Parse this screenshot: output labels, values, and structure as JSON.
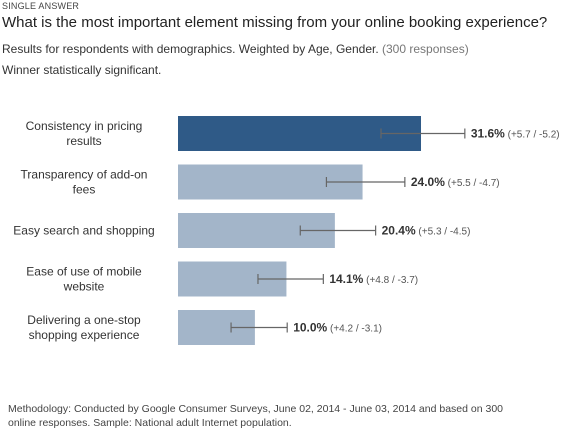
{
  "header": {
    "kicker": "SINGLE ANSWER",
    "question": "What is the most important element missing from your online booking experience?",
    "subtitle_main": "Results for respondents with demographics. Weighted by Age, Gender.",
    "subtitle_count": "(300 responses)",
    "note": "Winner statistically significant."
  },
  "footer": {
    "methodology": "Methodology: Conducted by Google Consumer Surveys, June 02, 2014 - June 03, 2014 and based on 300 online responses. Sample: National adult Internet population."
  },
  "colors": {
    "winner": "#2f5a87",
    "other": "#a3b5c9",
    "error_bar": "#666666"
  },
  "chart_data": {
    "type": "bar",
    "orientation": "horizontal",
    "categories": [
      [
        "Consistency in pricing",
        "results"
      ],
      [
        "Transparency of add-on",
        "fees"
      ],
      [
        "Easy search and shopping"
      ],
      [
        "Ease of use of mobile",
        "website"
      ],
      [
        "Delivering a one-stop",
        "shopping experience"
      ]
    ],
    "values": [
      31.6,
      24.0,
      20.4,
      14.1,
      10.0
    ],
    "value_labels": [
      "31.6%",
      "24.0%",
      "20.4%",
      "14.1%",
      "10.0%"
    ],
    "error_plus": [
      5.7,
      5.5,
      5.3,
      4.8,
      4.2
    ],
    "error_minus": [
      5.2,
      4.7,
      4.5,
      3.7,
      3.1
    ],
    "error_labels": [
      "(+5.7 / -5.2)",
      "(+5.5 / -4.7)",
      "(+5.3 / -4.5)",
      "(+4.8 / -3.7)",
      "(+4.2 / -3.1)"
    ],
    "winner_index": 0,
    "xlim": [
      0,
      50
    ]
  }
}
